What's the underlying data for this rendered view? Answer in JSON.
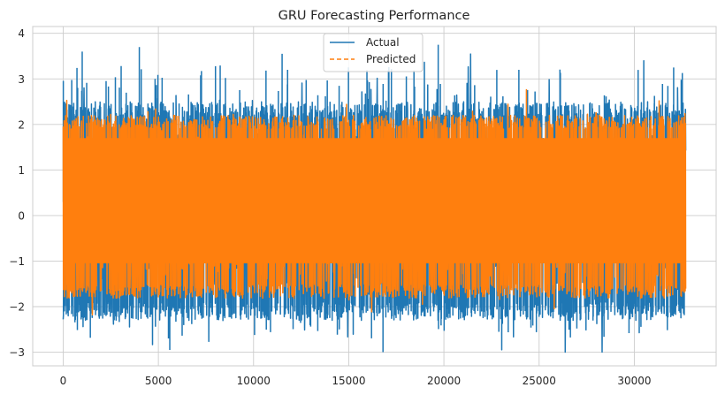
{
  "chart_data": {
    "type": "line",
    "title": "GRU Forecasting Performance",
    "xlabel": "",
    "ylabel": "",
    "xlim": [
      -1600,
      34300
    ],
    "ylim": [
      -3.3,
      4.15
    ],
    "x_ticks": [
      0,
      5000,
      10000,
      15000,
      20000,
      25000,
      30000
    ],
    "x_tick_labels": [
      "0",
      "5000",
      "10000",
      "15000",
      "20000",
      "25000",
      "30000"
    ],
    "y_ticks": [
      -3,
      -2,
      -1,
      0,
      1,
      2,
      3,
      4
    ],
    "y_tick_labels": [
      "−3",
      "−2",
      "−1",
      "0",
      "1",
      "2",
      "3",
      "4"
    ],
    "x_range": [
      0,
      32700
    ],
    "grid": true,
    "legend_position": "upper-center",
    "series": [
      {
        "name": "Actual",
        "color": "#1f77b4",
        "style": "solid",
        "typical_range": [
          -1.9,
          2.5
        ],
        "extreme_range": [
          -3.0,
          3.8
        ],
        "notable_peaks": [
          {
            "x": 1000,
            "y": 3.6
          },
          {
            "x": 4000,
            "y": 3.7
          },
          {
            "x": 11500,
            "y": 3.55
          },
          {
            "x": 19700,
            "y": 3.75
          },
          {
            "x": 5600,
            "y": -2.95
          },
          {
            "x": 16800,
            "y": -3.0
          }
        ]
      },
      {
        "name": "Predicted",
        "color": "#ff7f0e",
        "style": "dashed",
        "typical_range": [
          -1.5,
          2.2
        ],
        "extreme_range": [
          -2.6,
          2.9
        ]
      }
    ]
  }
}
